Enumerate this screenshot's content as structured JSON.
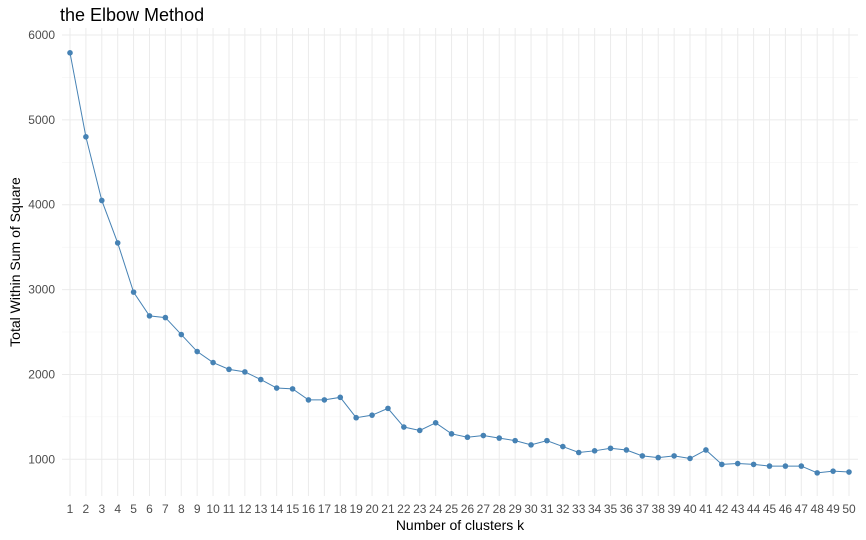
{
  "chart_data": {
    "type": "line",
    "title": "the Elbow Method",
    "xlabel": "Number of clusters k",
    "ylabel": "Total Within Sum of Square",
    "x": [
      1,
      2,
      3,
      4,
      5,
      6,
      7,
      8,
      9,
      10,
      11,
      12,
      13,
      14,
      15,
      16,
      17,
      18,
      19,
      20,
      21,
      22,
      23,
      24,
      25,
      26,
      27,
      28,
      29,
      30,
      31,
      32,
      33,
      34,
      35,
      36,
      37,
      38,
      39,
      40,
      41,
      42,
      43,
      44,
      45,
      46,
      47,
      48,
      49,
      50
    ],
    "series": [
      {
        "values": [
          5790,
          4800,
          4050,
          3550,
          2970,
          2690,
          2670,
          2470,
          2270,
          2140,
          2060,
          2030,
          1940,
          1840,
          1830,
          1700,
          1700,
          1730,
          1490,
          1520,
          1600,
          1380,
          1340,
          1430,
          1300,
          1260,
          1280,
          1250,
          1220,
          1170,
          1220,
          1150,
          1080,
          1100,
          1130,
          1110,
          1040,
          1020,
          1040,
          1010,
          1110,
          940,
          950,
          940,
          920,
          920,
          920,
          840,
          860,
          850
        ],
        "color": "#4682b4"
      }
    ],
    "yticks": [
      1000,
      2000,
      3000,
      4000,
      5000,
      6000
    ],
    "xlim": [
      1,
      50
    ],
    "ylim": [
      500,
      6200
    ],
    "grid": true,
    "legend": "none"
  }
}
